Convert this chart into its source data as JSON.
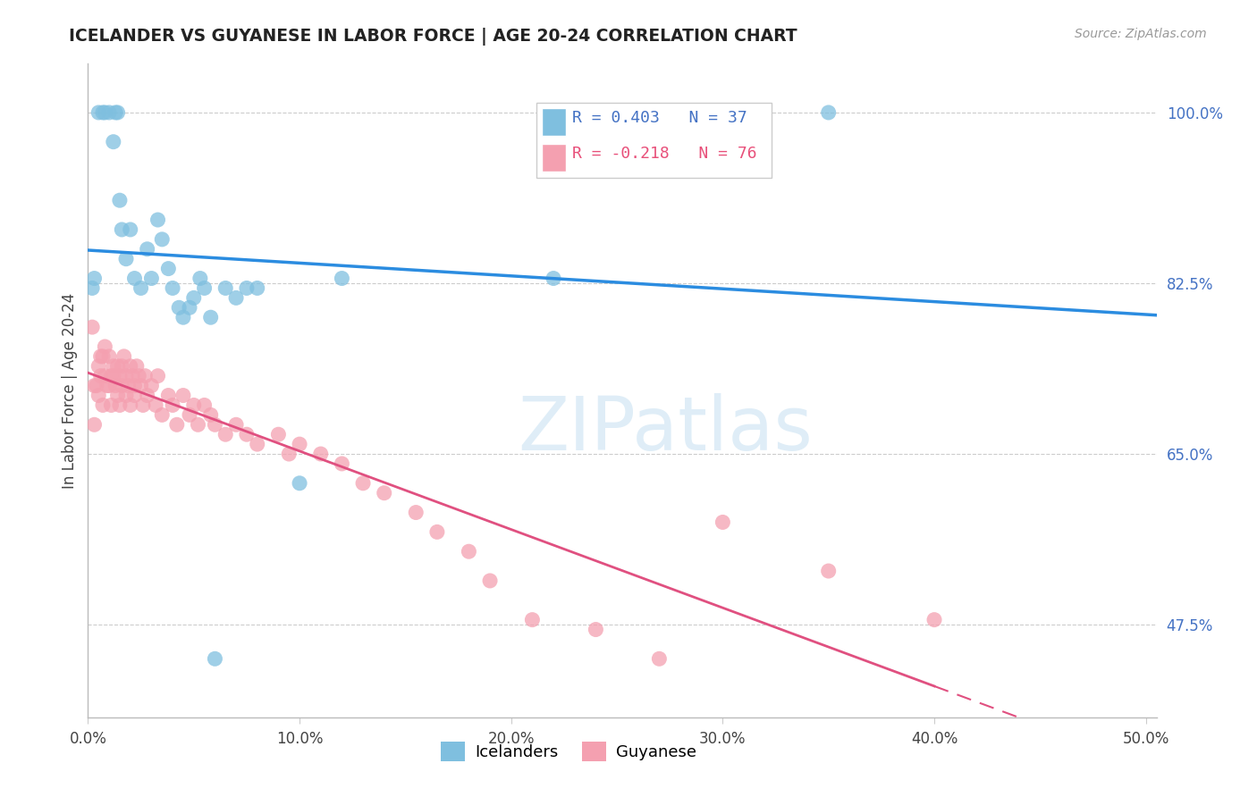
{
  "title": "ICELANDER VS GUYANESE IN LABOR FORCE | AGE 20-24 CORRELATION CHART",
  "source": "Source: ZipAtlas.com",
  "ylabel": "In Labor Force | Age 20-24",
  "xlim": [
    0.0,
    0.505
  ],
  "ylim": [
    0.38,
    1.05
  ],
  "xticks": [
    0.0,
    0.1,
    0.2,
    0.3,
    0.4,
    0.5
  ],
  "xticklabels": [
    "0.0%",
    "10.0%",
    "20.0%",
    "30.0%",
    "40.0%",
    "50.0%"
  ],
  "yticks_right": [
    1.0,
    0.825,
    0.65,
    0.475
  ],
  "yticklabels_right": [
    "100.0%",
    "82.5%",
    "65.0%",
    "47.5%"
  ],
  "grid_color": "#cccccc",
  "bg_color": "#ffffff",
  "ice_color": "#7fbfdf",
  "guy_color": "#f4a0b0",
  "ice_line_color": "#2B8CE0",
  "guy_line_color": "#E05080",
  "legend_R_ice": "R = 0.403",
  "legend_N_ice": "N = 37",
  "legend_R_guy": "R = -0.218",
  "legend_N_guy": "N = 76",
  "watermark": "ZIPatlas",
  "ice_x": [
    0.002,
    0.003,
    0.005,
    0.007,
    0.008,
    0.01,
    0.012,
    0.013,
    0.014,
    0.015,
    0.016,
    0.018,
    0.02,
    0.022,
    0.025,
    0.028,
    0.03,
    0.033,
    0.035,
    0.038,
    0.04,
    0.043,
    0.045,
    0.048,
    0.05,
    0.053,
    0.055,
    0.058,
    0.06,
    0.065,
    0.07,
    0.075,
    0.08,
    0.1,
    0.12,
    0.22,
    0.35
  ],
  "ice_y": [
    0.82,
    0.83,
    1.0,
    1.0,
    1.0,
    1.0,
    0.97,
    1.0,
    1.0,
    0.91,
    0.88,
    0.85,
    0.88,
    0.83,
    0.82,
    0.86,
    0.83,
    0.89,
    0.87,
    0.84,
    0.82,
    0.8,
    0.79,
    0.8,
    0.81,
    0.83,
    0.82,
    0.79,
    0.44,
    0.82,
    0.81,
    0.82,
    0.82,
    0.62,
    0.83,
    0.83,
    1.0
  ],
  "guy_x": [
    0.002,
    0.003,
    0.003,
    0.004,
    0.005,
    0.005,
    0.006,
    0.006,
    0.007,
    0.007,
    0.008,
    0.008,
    0.009,
    0.01,
    0.01,
    0.011,
    0.011,
    0.012,
    0.012,
    0.013,
    0.014,
    0.014,
    0.015,
    0.015,
    0.016,
    0.016,
    0.017,
    0.018,
    0.018,
    0.019,
    0.02,
    0.02,
    0.021,
    0.022,
    0.022,
    0.023,
    0.024,
    0.025,
    0.026,
    0.027,
    0.028,
    0.03,
    0.032,
    0.033,
    0.035,
    0.038,
    0.04,
    0.042,
    0.045,
    0.048,
    0.05,
    0.052,
    0.055,
    0.058,
    0.06,
    0.065,
    0.07,
    0.075,
    0.08,
    0.09,
    0.095,
    0.1,
    0.11,
    0.12,
    0.13,
    0.14,
    0.155,
    0.165,
    0.18,
    0.19,
    0.21,
    0.24,
    0.27,
    0.3,
    0.35,
    0.4
  ],
  "guy_y": [
    0.78,
    0.72,
    0.68,
    0.72,
    0.74,
    0.71,
    0.75,
    0.73,
    0.7,
    0.75,
    0.73,
    0.76,
    0.72,
    0.75,
    0.72,
    0.73,
    0.7,
    0.74,
    0.73,
    0.72,
    0.74,
    0.71,
    0.73,
    0.7,
    0.74,
    0.72,
    0.75,
    0.71,
    0.73,
    0.72,
    0.74,
    0.7,
    0.73,
    0.72,
    0.71,
    0.74,
    0.73,
    0.72,
    0.7,
    0.73,
    0.71,
    0.72,
    0.7,
    0.73,
    0.69,
    0.71,
    0.7,
    0.68,
    0.71,
    0.69,
    0.7,
    0.68,
    0.7,
    0.69,
    0.68,
    0.67,
    0.68,
    0.67,
    0.66,
    0.67,
    0.65,
    0.66,
    0.65,
    0.64,
    0.62,
    0.61,
    0.59,
    0.57,
    0.55,
    0.52,
    0.48,
    0.47,
    0.44,
    0.58,
    0.53,
    0.48
  ]
}
